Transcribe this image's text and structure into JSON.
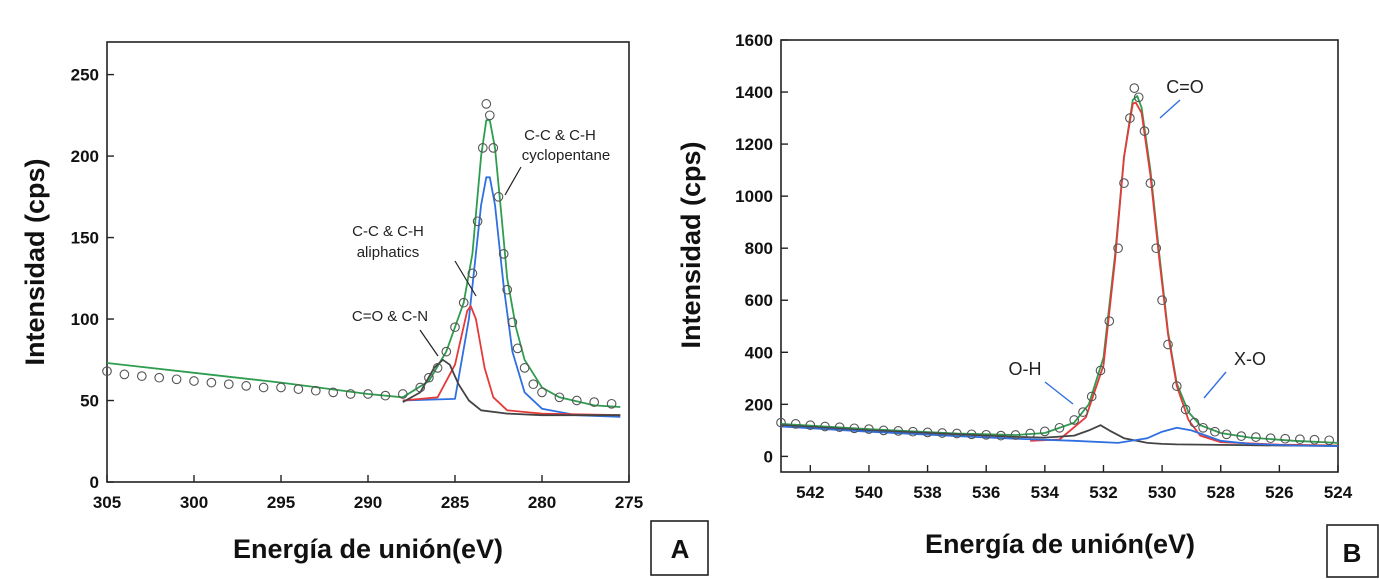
{
  "panels": [
    {
      "id": "A",
      "panel_label": "A",
      "xlabel": "Energía de unión(eV)",
      "ylabel": "Intensidad (cps)",
      "colors": {
        "envelope": "#2e9d4f",
        "fit_blue": "#2f6fe0",
        "fit_red": "#e53a3a",
        "fit_gray": "#444444",
        "points": "#555555"
      },
      "annotations": [
        "C-C & C-H",
        "cyclopentane",
        "C-C & C-H",
        "aliphatics",
        "C=O & C-N"
      ]
    },
    {
      "id": "B",
      "panel_label": "B",
      "xlabel": "Energía de unión(eV)",
      "ylabel": "Intensidad (cps)",
      "colors": {
        "envelope": "#2e9d4f",
        "fit_blue": "#2f6fe0",
        "fit_red": "#e53a3a",
        "fit_gray": "#444444",
        "points": "#555555"
      },
      "annotations": [
        "C=O",
        "O-H",
        "X-O"
      ]
    }
  ],
  "chart_data": [
    {
      "type": "scatter",
      "title": "",
      "xlabel": "Energía de unión(eV)",
      "ylabel": "Intensidad (cps)",
      "xlim": [
        305,
        275
      ],
      "ylim": [
        0,
        270
      ],
      "x_reversed": true,
      "xticks": [
        305,
        300,
        295,
        290,
        285,
        280,
        275
      ],
      "yticks": [
        0,
        50,
        100,
        150,
        200,
        250
      ],
      "grid": false,
      "series": [
        {
          "points": [
            [
              305,
              68
            ],
            [
              304,
              66
            ],
            [
              303,
              65
            ],
            [
              302,
              64
            ],
            [
              301,
              63
            ],
            [
              300,
              62
            ],
            [
              299,
              61
            ],
            [
              298,
              60
            ],
            [
              297,
              59
            ],
            [
              296,
              58
            ],
            [
              295,
              58
            ],
            [
              294,
              57
            ],
            [
              293,
              56
            ],
            [
              292,
              55
            ],
            [
              291,
              54
            ],
            [
              290,
              54
            ],
            [
              289,
              53
            ],
            [
              288,
              54
            ],
            [
              287,
              58
            ],
            [
              286.5,
              64
            ],
            [
              286,
              70
            ],
            [
              285.5,
              80
            ],
            [
              285,
              95
            ],
            [
              284.5,
              110
            ],
            [
              284,
              128
            ],
            [
              283.7,
              160
            ],
            [
              283.4,
              205
            ],
            [
              283.2,
              232
            ],
            [
              283,
              225
            ],
            [
              282.8,
              205
            ],
            [
              282.5,
              175
            ],
            [
              282.2,
              140
            ],
            [
              282,
              118
            ],
            [
              281.7,
              98
            ],
            [
              281.4,
              82
            ],
            [
              281,
              70
            ],
            [
              280.5,
              60
            ],
            [
              280,
              55
            ],
            [
              279,
              52
            ],
            [
              278,
              50
            ],
            [
              277,
              49
            ],
            [
              276,
              48
            ]
          ]
        },
        {
          "name": "",
          "values": [
            [
              305,
              73
            ],
            [
              300,
              67
            ],
            [
              295,
              61
            ],
            [
              290,
              54
            ],
            [
              288,
              52
            ],
            [
              286.5,
              62
            ],
            [
              285.5,
              80
            ],
            [
              284.5,
              110
            ],
            [
              284,
              140
            ],
            [
              283.5,
              200
            ],
            [
              283.2,
              222
            ],
            [
              283,
              222
            ],
            [
              282.7,
              205
            ],
            [
              282.3,
              160
            ],
            [
              282,
              125
            ],
            [
              281.5,
              95
            ],
            [
              281,
              75
            ],
            [
              280,
              58
            ],
            [
              279,
              52
            ],
            [
              277,
              47
            ],
            [
              275.5,
              46
            ]
          ]
        },
        {
          "name": "",
          "values": [
            [
              288,
              50
            ],
            [
              285,
              51
            ],
            [
              284.2,
              100
            ],
            [
              283.5,
              170
            ],
            [
              283.2,
              187
            ],
            [
              283,
              187
            ],
            [
              282.7,
              170
            ],
            [
              282.2,
              120
            ],
            [
              281.7,
              80
            ],
            [
              281,
              55
            ],
            [
              280,
              45
            ],
            [
              278,
              41
            ],
            [
              275.5,
              40
            ]
          ]
        },
        {
          "name": "",
          "values": [
            [
              288,
              50
            ],
            [
              286,
              52
            ],
            [
              285,
              72
            ],
            [
              284.3,
              105
            ],
            [
              284.1,
              108
            ],
            [
              283.8,
              100
            ],
            [
              283.3,
              70
            ],
            [
              282.8,
              52
            ],
            [
              282,
              44
            ],
            [
              280,
              42
            ],
            [
              275.5,
              41
            ]
          ]
        },
        {
          "name": "",
          "values": [
            [
              288,
              49
            ],
            [
              287,
              55
            ],
            [
              286.2,
              70
            ],
            [
              285.7,
              75
            ],
            [
              285.3,
              72
            ],
            [
              284.8,
              60
            ],
            [
              284.2,
              50
            ],
            [
              283.5,
              44
            ],
            [
              282,
              42
            ],
            [
              280,
              41
            ],
            [
              275.5,
              41
            ]
          ]
        }
      ]
    },
    {
      "type": "scatter",
      "title": "",
      "xlabel": "Energía de unión(eV)",
      "ylabel": "Intensidad (cps)",
      "xlim": [
        543,
        524
      ],
      "ylim": [
        -60,
        1600
      ],
      "x_reversed": true,
      "xticks": [
        542,
        540,
        538,
        536,
        534,
        532,
        530,
        528,
        526,
        524
      ],
      "yticks": [
        0,
        200,
        400,
        600,
        800,
        1000,
        1200,
        1400,
        1600
      ],
      "grid": false,
      "series": [
        {
          "points": [
            [
              543,
              130
            ],
            [
              542.5,
              125
            ],
            [
              542,
              120
            ],
            [
              541.5,
              115
            ],
            [
              541,
              112
            ],
            [
              540.5,
              108
            ],
            [
              540,
              105
            ],
            [
              539.5,
              100
            ],
            [
              539,
              98
            ],
            [
              538.5,
              95
            ],
            [
              538,
              92
            ],
            [
              537.5,
              90
            ],
            [
              537,
              88
            ],
            [
              536.5,
              85
            ],
            [
              536,
              83
            ],
            [
              535.5,
              80
            ],
            [
              535,
              82
            ],
            [
              534.5,
              88
            ],
            [
              534,
              96
            ],
            [
              533.5,
              110
            ],
            [
              533,
              140
            ],
            [
              532.7,
              170
            ],
            [
              532.4,
              230
            ],
            [
              532.1,
              330
            ],
            [
              531.8,
              520
            ],
            [
              531.5,
              800
            ],
            [
              531.3,
              1050
            ],
            [
              531.1,
              1300
            ],
            [
              530.95,
              1415
            ],
            [
              530.8,
              1380
            ],
            [
              530.6,
              1250
            ],
            [
              530.4,
              1050
            ],
            [
              530.2,
              800
            ],
            [
              530,
              600
            ],
            [
              529.8,
              430
            ],
            [
              529.5,
              270
            ],
            [
              529.2,
              180
            ],
            [
              528.9,
              130
            ],
            [
              528.6,
              110
            ],
            [
              528.2,
              95
            ],
            [
              527.8,
              85
            ],
            [
              527.3,
              78
            ],
            [
              526.8,
              74
            ],
            [
              526.3,
              70
            ],
            [
              525.8,
              68
            ],
            [
              525.3,
              66
            ],
            [
              524.8,
              64
            ],
            [
              524.3,
              62
            ]
          ]
        },
        {
          "name": "",
          "values": [
            [
              543,
              125
            ],
            [
              540,
              105
            ],
            [
              537,
              88
            ],
            [
              535,
              82
            ],
            [
              534,
              90
            ],
            [
              533,
              130
            ],
            [
              532.5,
              200
            ],
            [
              532,
              380
            ],
            [
              531.6,
              780
            ],
            [
              531.3,
              1150
            ],
            [
              531,
              1370
            ],
            [
              530.85,
              1385
            ],
            [
              530.7,
              1340
            ],
            [
              530.4,
              1100
            ],
            [
              530.1,
              780
            ],
            [
              529.8,
              480
            ],
            [
              529.5,
              280
            ],
            [
              529.1,
              170
            ],
            [
              528.7,
              120
            ],
            [
              528,
              90
            ],
            [
              527,
              72
            ],
            [
              525.5,
              60
            ],
            [
              524,
              52
            ]
          ]
        },
        {
          "name": "",
          "values": [
            [
              534.5,
              60
            ],
            [
              533.5,
              65
            ],
            [
              532.6,
              150
            ],
            [
              532,
              350
            ],
            [
              531.6,
              760
            ],
            [
              531.3,
              1150
            ],
            [
              531,
              1355
            ],
            [
              530.9,
              1360
            ],
            [
              530.7,
              1320
            ],
            [
              530.4,
              1080
            ],
            [
              530.1,
              760
            ],
            [
              529.8,
              470
            ],
            [
              529.5,
              270
            ],
            [
              529.1,
              140
            ],
            [
              528.7,
              80
            ],
            [
              528,
              55
            ],
            [
              526,
              45
            ],
            [
              524,
              42
            ]
          ]
        },
        {
          "name": "",
          "values": [
            [
              543,
              120
            ],
            [
              540,
              100
            ],
            [
              537,
              85
            ],
            [
              535,
              75
            ],
            [
              534,
              72
            ],
            [
              533,
              80
            ],
            [
              532.5,
              100
            ],
            [
              532.1,
              120
            ],
            [
              531.8,
              100
            ],
            [
              531.3,
              70
            ],
            [
              530.5,
              52
            ],
            [
              530,
              48
            ],
            [
              529.5,
              46
            ],
            [
              528,
              44
            ],
            [
              526,
              42
            ],
            [
              524,
              40
            ]
          ]
        },
        {
          "name": "",
          "values": [
            [
              543,
              115
            ],
            [
              540,
              95
            ],
            [
              537,
              78
            ],
            [
              535,
              68
            ],
            [
              533,
              60
            ],
            [
              531.5,
              52
            ],
            [
              530.5,
              70
            ],
            [
              530,
              95
            ],
            [
              529.5,
              110
            ],
            [
              529,
              100
            ],
            [
              528.5,
              80
            ],
            [
              528,
              60
            ],
            [
              527,
              48
            ],
            [
              525.5,
              42
            ],
            [
              524,
              40
            ]
          ]
        }
      ]
    }
  ]
}
